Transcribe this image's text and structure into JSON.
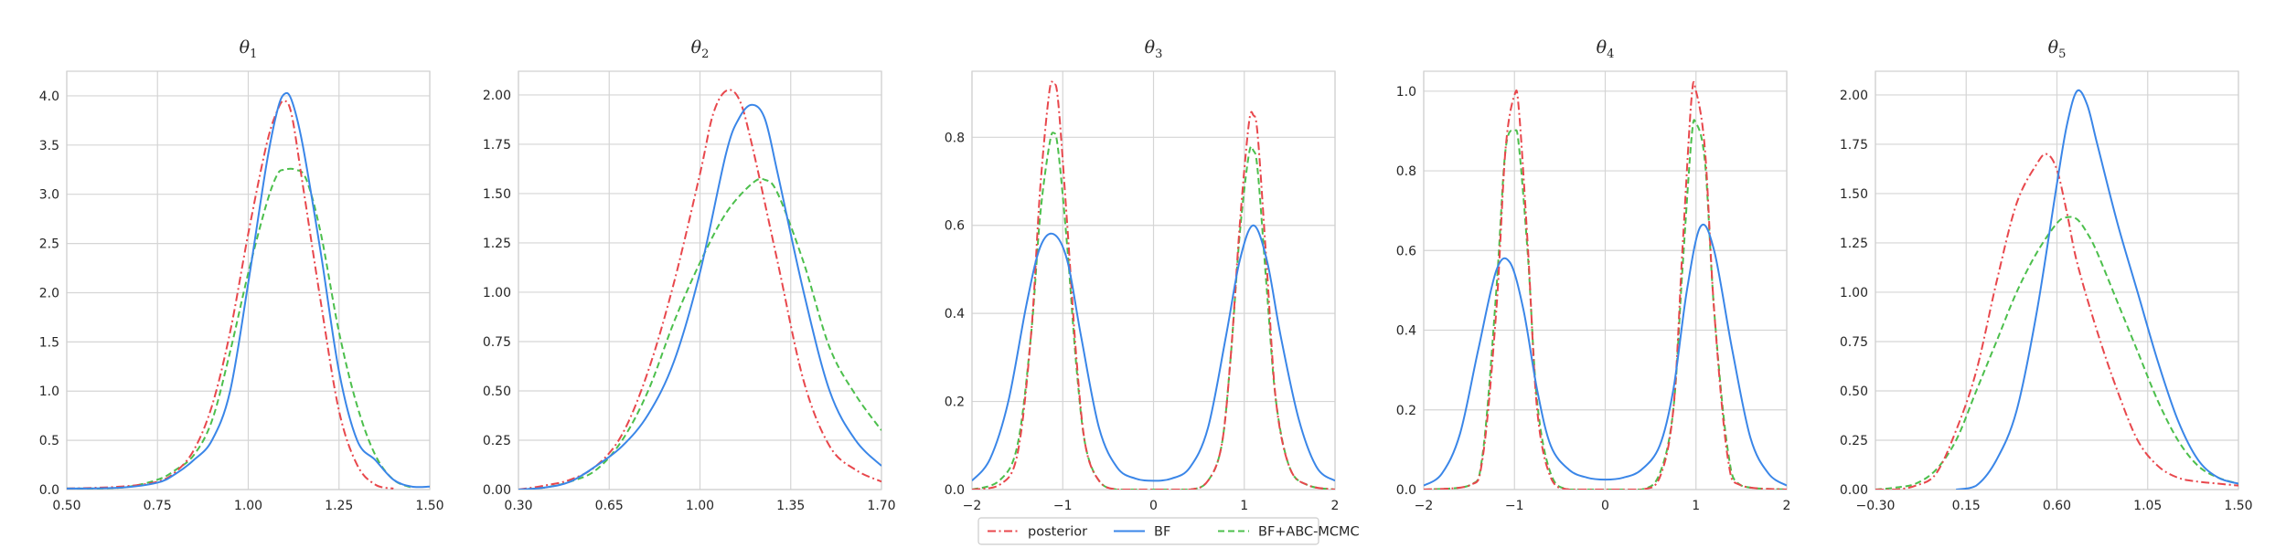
{
  "legend": {
    "placement": "bottom-center",
    "entries": [
      {
        "label": "posterior",
        "color": "#e8474c",
        "dash": "dashdot"
      },
      {
        "label": "BF",
        "color": "#3a86e8",
        "dash": "solid"
      },
      {
        "label": "BF+ABC-MCMC",
        "color": "#4cbf4c",
        "dash": "dashed"
      }
    ]
  },
  "chart_data": [
    {
      "type": "line",
      "title": "θ1",
      "grid": true,
      "xlim": [
        0.5,
        1.5
      ],
      "ylim": [
        0,
        4.25
      ],
      "xticks": [
        0.5,
        0.75,
        1.0,
        1.25,
        1.5
      ],
      "xtick_labels": [
        "0.50",
        "0.75",
        "1.00",
        "1.25",
        "1.50"
      ],
      "yticks": [
        0,
        0.5,
        1.0,
        1.5,
        2.0,
        2.5,
        3.0,
        3.5,
        4.0
      ],
      "ytick_labels": [
        "0.0",
        "0.5",
        "1.0",
        "1.5",
        "2.0",
        "2.5",
        "3.0",
        "3.5",
        "4.0"
      ],
      "series": [
        {
          "name": "posterior",
          "color": "#e8474c",
          "dash": "dashdot",
          "x": [
            0.5,
            0.65,
            0.75,
            0.8,
            0.85,
            0.9,
            0.95,
            1.0,
            1.05,
            1.08,
            1.1,
            1.12,
            1.15,
            1.2,
            1.25,
            1.3,
            1.35,
            1.4
          ],
          "y": [
            0.01,
            0.03,
            0.08,
            0.18,
            0.4,
            0.85,
            1.6,
            2.6,
            3.5,
            3.85,
            3.95,
            3.8,
            3.1,
            1.9,
            0.8,
            0.25,
            0.05,
            0.01
          ]
        },
        {
          "name": "BF",
          "color": "#3a86e8",
          "dash": "solid",
          "x": [
            0.5,
            0.65,
            0.75,
            0.8,
            0.85,
            0.9,
            0.95,
            1.0,
            1.05,
            1.08,
            1.1,
            1.12,
            1.15,
            1.2,
            1.25,
            1.3,
            1.35,
            1.4,
            1.45,
            1.5
          ],
          "y": [
            0.01,
            0.02,
            0.07,
            0.16,
            0.3,
            0.5,
            1.0,
            2.1,
            3.3,
            3.85,
            4.02,
            3.95,
            3.5,
            2.4,
            1.2,
            0.5,
            0.3,
            0.1,
            0.03,
            0.03
          ]
        },
        {
          "name": "BF+ABC-MCMC",
          "color": "#4cbf4c",
          "dash": "dashed",
          "x": [
            0.5,
            0.65,
            0.75,
            0.8,
            0.85,
            0.9,
            0.95,
            1.0,
            1.05,
            1.08,
            1.1,
            1.13,
            1.16,
            1.2,
            1.25,
            1.3,
            1.35,
            1.4,
            1.45
          ],
          "y": [
            0.01,
            0.02,
            0.1,
            0.2,
            0.35,
            0.7,
            1.4,
            2.2,
            2.9,
            3.2,
            3.25,
            3.25,
            3.15,
            2.6,
            1.6,
            0.85,
            0.35,
            0.1,
            0.02
          ]
        }
      ]
    },
    {
      "type": "line",
      "title": "θ2",
      "grid": true,
      "xlim": [
        0.3,
        1.7
      ],
      "ylim": [
        0,
        2.12
      ],
      "xticks": [
        0.3,
        0.65,
        1.0,
        1.35,
        1.7
      ],
      "xtick_labels": [
        "0.30",
        "0.65",
        "1.00",
        "1.35",
        "1.70"
      ],
      "yticks": [
        0,
        0.25,
        0.5,
        0.75,
        1.0,
        1.25,
        1.5,
        1.75,
        2.0
      ],
      "ytick_labels": [
        "0.00",
        "0.25",
        "0.50",
        "0.75",
        "1.00",
        "1.25",
        "1.50",
        "1.75",
        "2.00"
      ],
      "series": [
        {
          "name": "posterior",
          "color": "#e8474c",
          "dash": "dashdot",
          "x": [
            0.3,
            0.4,
            0.5,
            0.6,
            0.7,
            0.8,
            0.9,
            1.0,
            1.05,
            1.1,
            1.15,
            1.2,
            1.3,
            1.4,
            1.5,
            1.6,
            1.7
          ],
          "y": [
            0.0,
            0.02,
            0.05,
            0.12,
            0.28,
            0.6,
            1.05,
            1.6,
            1.9,
            2.02,
            1.98,
            1.75,
            1.15,
            0.55,
            0.22,
            0.1,
            0.04
          ]
        },
        {
          "name": "BF",
          "color": "#3a86e8",
          "dash": "solid",
          "x": [
            0.3,
            0.4,
            0.5,
            0.6,
            0.7,
            0.8,
            0.9,
            1.0,
            1.1,
            1.15,
            1.2,
            1.25,
            1.3,
            1.4,
            1.5,
            1.6,
            1.7
          ],
          "y": [
            0.0,
            0.01,
            0.04,
            0.12,
            0.22,
            0.38,
            0.65,
            1.1,
            1.7,
            1.88,
            1.95,
            1.88,
            1.6,
            1.0,
            0.5,
            0.25,
            0.12
          ]
        },
        {
          "name": "BF+ABC-MCMC",
          "color": "#4cbf4c",
          "dash": "dashed",
          "x": [
            0.3,
            0.4,
            0.5,
            0.6,
            0.7,
            0.8,
            0.9,
            1.0,
            1.1,
            1.2,
            1.25,
            1.3,
            1.4,
            1.5,
            1.6,
            1.7
          ],
          "y": [
            0.0,
            0.01,
            0.04,
            0.1,
            0.25,
            0.5,
            0.85,
            1.15,
            1.4,
            1.55,
            1.57,
            1.5,
            1.15,
            0.72,
            0.48,
            0.3
          ]
        }
      ]
    },
    {
      "type": "line",
      "title": "θ3",
      "grid": true,
      "xlim": [
        -2,
        2
      ],
      "ylim": [
        0,
        0.95
      ],
      "xticks": [
        -2,
        -1,
        0,
        1,
        2
      ],
      "xtick_labels": [
        "−2",
        "−1",
        "0",
        "1",
        "2"
      ],
      "yticks": [
        0,
        0.2,
        0.4,
        0.6,
        0.8
      ],
      "ytick_labels": [
        "0.0",
        "0.2",
        "0.4",
        "0.6",
        "0.8"
      ],
      "series": [
        {
          "name": "posterior",
          "color": "#e8474c",
          "dash": "dashdot",
          "x": [
            -2.0,
            -1.7,
            -1.5,
            -1.35,
            -1.25,
            -1.15,
            -1.1,
            -1.05,
            -0.95,
            -0.85,
            -0.75,
            -0.6,
            -0.4,
            0.0,
            0.4,
            0.6,
            0.75,
            0.85,
            0.95,
            1.05,
            1.1,
            1.15,
            1.25,
            1.35,
            1.5,
            1.7,
            2.0
          ],
          "y": [
            0.0,
            0.01,
            0.08,
            0.35,
            0.68,
            0.9,
            0.92,
            0.88,
            0.6,
            0.3,
            0.1,
            0.02,
            0.0,
            0.0,
            0.0,
            0.02,
            0.1,
            0.3,
            0.6,
            0.83,
            0.85,
            0.8,
            0.5,
            0.2,
            0.05,
            0.01,
            0.0
          ]
        },
        {
          "name": "BF",
          "color": "#3a86e8",
          "dash": "solid",
          "x": [
            -2.0,
            -1.8,
            -1.6,
            -1.4,
            -1.25,
            -1.1,
            -0.95,
            -0.8,
            -0.6,
            -0.4,
            -0.2,
            0.0,
            0.2,
            0.4,
            0.6,
            0.8,
            0.95,
            1.1,
            1.25,
            1.4,
            1.6,
            1.8,
            2.0
          ],
          "y": [
            0.02,
            0.07,
            0.2,
            0.42,
            0.55,
            0.58,
            0.52,
            0.35,
            0.14,
            0.05,
            0.025,
            0.02,
            0.025,
            0.05,
            0.14,
            0.35,
            0.52,
            0.6,
            0.52,
            0.35,
            0.16,
            0.05,
            0.02
          ]
        },
        {
          "name": "BF+ABC-MCMC",
          "color": "#4cbf4c",
          "dash": "dashed",
          "x": [
            -2.0,
            -1.7,
            -1.5,
            -1.35,
            -1.25,
            -1.15,
            -1.1,
            -1.05,
            -0.95,
            -0.85,
            -0.75,
            -0.6,
            -0.4,
            0.0,
            0.4,
            0.6,
            0.75,
            0.85,
            0.95,
            1.05,
            1.1,
            1.15,
            1.25,
            1.35,
            1.5,
            1.7,
            2.0
          ],
          "y": [
            0.0,
            0.02,
            0.1,
            0.35,
            0.62,
            0.78,
            0.81,
            0.77,
            0.55,
            0.28,
            0.1,
            0.02,
            0.0,
            0.0,
            0.0,
            0.02,
            0.1,
            0.3,
            0.58,
            0.76,
            0.77,
            0.72,
            0.45,
            0.2,
            0.05,
            0.01,
            0.0
          ]
        }
      ]
    },
    {
      "type": "line",
      "title": "θ4",
      "grid": true,
      "xlim": [
        -2,
        2
      ],
      "ylim": [
        0,
        1.05
      ],
      "xticks": [
        -2,
        -1,
        0,
        1,
        2
      ],
      "xtick_labels": [
        "−2",
        "−1",
        "0",
        "1",
        "2"
      ],
      "yticks": [
        0,
        0.2,
        0.4,
        0.6,
        0.8,
        1.0
      ],
      "ytick_labels": [
        "0.0",
        "0.2",
        "0.4",
        "0.6",
        "0.8",
        "1.0"
      ],
      "series": [
        {
          "name": "posterior",
          "color": "#e8474c",
          "dash": "dashdot",
          "x": [
            -2.0,
            -1.5,
            -1.35,
            -1.2,
            -1.1,
            -1.0,
            -0.95,
            -0.85,
            -0.75,
            -0.6,
            -0.4,
            0.0,
            0.4,
            0.6,
            0.75,
            0.85,
            0.95,
            1.0,
            1.1,
            1.2,
            1.35,
            1.5,
            2.0
          ],
          "y": [
            0.0,
            0.01,
            0.08,
            0.45,
            0.85,
            0.99,
            0.95,
            0.6,
            0.2,
            0.03,
            0.0,
            0.0,
            0.0,
            0.03,
            0.2,
            0.6,
            0.98,
            1.0,
            0.85,
            0.45,
            0.08,
            0.01,
            0.0
          ]
        },
        {
          "name": "BF",
          "color": "#3a86e8",
          "dash": "solid",
          "x": [
            -2.0,
            -1.8,
            -1.6,
            -1.4,
            -1.2,
            -1.05,
            -0.9,
            -0.75,
            -0.6,
            -0.4,
            -0.2,
            0.0,
            0.2,
            0.4,
            0.6,
            0.75,
            0.9,
            1.05,
            1.2,
            1.4,
            1.6,
            1.8,
            2.0
          ],
          "y": [
            0.01,
            0.04,
            0.14,
            0.35,
            0.55,
            0.57,
            0.45,
            0.25,
            0.11,
            0.05,
            0.03,
            0.025,
            0.03,
            0.05,
            0.11,
            0.25,
            0.5,
            0.66,
            0.6,
            0.35,
            0.13,
            0.04,
            0.01
          ]
        },
        {
          "name": "BF+ABC-MCMC",
          "color": "#4cbf4c",
          "dash": "dashed",
          "x": [
            -2.0,
            -1.5,
            -1.35,
            -1.2,
            -1.1,
            -1.0,
            -0.95,
            -0.85,
            -0.75,
            -0.6,
            -0.4,
            0.0,
            0.4,
            0.6,
            0.75,
            0.85,
            0.95,
            1.0,
            1.1,
            1.2,
            1.35,
            1.5,
            2.0
          ],
          "y": [
            0.0,
            0.01,
            0.09,
            0.5,
            0.85,
            0.9,
            0.86,
            0.58,
            0.22,
            0.04,
            0.0,
            0.0,
            0.0,
            0.04,
            0.2,
            0.55,
            0.88,
            0.92,
            0.82,
            0.45,
            0.1,
            0.01,
            0.0
          ]
        }
      ]
    },
    {
      "type": "line",
      "title": "θ5",
      "grid": true,
      "xlim": [
        -0.3,
        1.5
      ],
      "ylim": [
        0,
        2.12
      ],
      "xticks": [
        -0.3,
        0.15,
        0.6,
        1.05,
        1.5
      ],
      "xtick_labels": [
        "−0.30",
        "0.15",
        "0.60",
        "1.05",
        "1.50"
      ],
      "yticks": [
        0,
        0.25,
        0.5,
        0.75,
        1.0,
        1.25,
        1.5,
        1.75,
        2.0
      ],
      "ytick_labels": [
        "0.00",
        "0.25",
        "0.50",
        "0.75",
        "1.00",
        "1.25",
        "1.50",
        "1.75",
        "2.00"
      ],
      "series": [
        {
          "name": "posterior",
          "color": "#e8474c",
          "dash": "dashdot",
          "x": [
            -0.3,
            -0.2,
            -0.1,
            0.0,
            0.1,
            0.2,
            0.3,
            0.4,
            0.5,
            0.55,
            0.6,
            0.65,
            0.7,
            0.8,
            0.9,
            1.0,
            1.1,
            1.2,
            1.3,
            1.4,
            1.5
          ],
          "y": [
            0.0,
            0.0,
            0.02,
            0.08,
            0.3,
            0.6,
            1.05,
            1.45,
            1.65,
            1.7,
            1.62,
            1.4,
            1.15,
            0.8,
            0.5,
            0.25,
            0.12,
            0.06,
            0.04,
            0.03,
            0.02
          ]
        },
        {
          "name": "BF",
          "color": "#3a86e8",
          "dash": "solid",
          "x": [
            0.1,
            0.2,
            0.3,
            0.4,
            0.5,
            0.6,
            0.65,
            0.7,
            0.75,
            0.8,
            0.9,
            1.0,
            1.1,
            1.2,
            1.3,
            1.4,
            1.5
          ],
          "y": [
            0.0,
            0.02,
            0.15,
            0.4,
            0.9,
            1.55,
            1.85,
            2.02,
            1.95,
            1.75,
            1.35,
            1.0,
            0.65,
            0.35,
            0.15,
            0.06,
            0.03
          ]
        },
        {
          "name": "BF+ABC-MCMC",
          "color": "#4cbf4c",
          "dash": "dashed",
          "x": [
            -0.3,
            -0.2,
            -0.1,
            0.0,
            0.1,
            0.2,
            0.3,
            0.4,
            0.5,
            0.6,
            0.65,
            0.7,
            0.75,
            0.8,
            0.9,
            1.0,
            1.1,
            1.2,
            1.3,
            1.4,
            1.5
          ],
          "y": [
            0.0,
            0.01,
            0.03,
            0.1,
            0.25,
            0.5,
            0.75,
            1.0,
            1.2,
            1.35,
            1.38,
            1.37,
            1.3,
            1.2,
            0.95,
            0.7,
            0.45,
            0.25,
            0.12,
            0.06,
            0.03
          ]
        }
      ]
    }
  ]
}
